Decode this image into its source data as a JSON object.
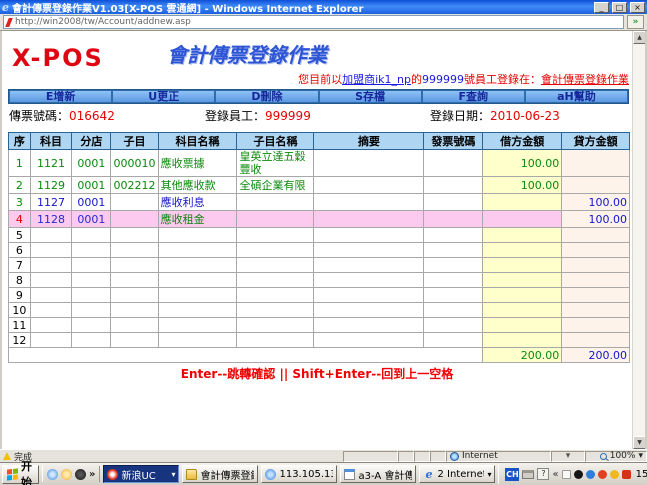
{
  "window": {
    "title": "會計傳票登錄作業V1.03[X-POS 雲通網] - Windows Internet Explorer",
    "minimize_label": "_",
    "maximize_label": "□",
    "close_label": "×"
  },
  "address_bar": {
    "url": "http://win2008/tw/Account/addnew.asp"
  },
  "colors": {
    "titlebar_blue": "#1b5fe0",
    "menu_button_blue": "#6ba3e8",
    "grid_header_blue": "#aed6f2",
    "debit_column_yellow": "#ffffcc",
    "credit_column_pink": "#fdf3ea",
    "selected_row_pink": "#fcc9ef",
    "value_red": "#e80000",
    "entry_green": "#0a8a0a",
    "entry_blue": "#1515c8"
  },
  "page": {
    "logo": "X-POS",
    "title": "會計傳票登錄作業",
    "login_notice": {
      "prefix": "您目前以",
      "merchant": "加盟商ik1_np",
      "mid": "的",
      "employee": "999999",
      "suffix": "號員工登錄在：",
      "location": "會計傳票登錄作業"
    },
    "menu": [
      "E增新",
      "U更正",
      "D刪除",
      "S存檔",
      "F查詢",
      "aH幫助"
    ],
    "fields": {
      "voucher_label": "傳票號碼：",
      "voucher_value": "016642",
      "employee_label": "登錄員工：",
      "employee_value": "999999",
      "date_label": "登錄日期：",
      "date_value": "2010-06-23"
    },
    "table": {
      "headers": [
        "序",
        "科目",
        "分店",
        "子目",
        "科目名稱",
        "子目名稱",
        "摘要",
        "發票號碼",
        "借方金額",
        "貸方金額"
      ],
      "rows": [
        {
          "seq": "1",
          "account": "1121",
          "branch": "0001",
          "sub": "000010",
          "account_name": "應收票據",
          "sub_name": "皇英立達五穀豐收",
          "summary": "",
          "invoice": "",
          "debit": "100.00",
          "credit": "",
          "style": "green"
        },
        {
          "seq": "2",
          "account": "1129",
          "branch": "0001",
          "sub": "002212",
          "account_name": "其他應收款",
          "sub_name": "全碩企業有限",
          "summary": "",
          "invoice": "",
          "debit": "100.00",
          "credit": "",
          "style": "green"
        },
        {
          "seq": "3",
          "account": "1127",
          "branch": "0001",
          "sub": "",
          "account_name": "應收利息",
          "sub_name": "",
          "summary": "",
          "invoice": "",
          "debit": "",
          "credit": "100.00",
          "style": "blue"
        },
        {
          "seq": "4",
          "account": "1128",
          "branch": "0001",
          "sub": "",
          "account_name": "應收租金",
          "sub_name": "",
          "summary": "",
          "invoice": "",
          "debit": "",
          "credit": "100.00",
          "style": "sel"
        },
        {
          "seq": "5",
          "account": "",
          "branch": "",
          "sub": "",
          "account_name": "",
          "sub_name": "",
          "summary": "",
          "invoice": "",
          "debit": "",
          "credit": "",
          "style": "plain"
        },
        {
          "seq": "6",
          "account": "",
          "branch": "",
          "sub": "",
          "account_name": "",
          "sub_name": "",
          "summary": "",
          "invoice": "",
          "debit": "",
          "credit": "",
          "style": "plain"
        },
        {
          "seq": "7",
          "account": "",
          "branch": "",
          "sub": "",
          "account_name": "",
          "sub_name": "",
          "summary": "",
          "invoice": "",
          "debit": "",
          "credit": "",
          "style": "plain"
        },
        {
          "seq": "8",
          "account": "",
          "branch": "",
          "sub": "",
          "account_name": "",
          "sub_name": "",
          "summary": "",
          "invoice": "",
          "debit": "",
          "credit": "",
          "style": "plain"
        },
        {
          "seq": "9",
          "account": "",
          "branch": "",
          "sub": "",
          "account_name": "",
          "sub_name": "",
          "summary": "",
          "invoice": "",
          "debit": "",
          "credit": "",
          "style": "plain"
        },
        {
          "seq": "10",
          "account": "",
          "branch": "",
          "sub": "",
          "account_name": "",
          "sub_name": "",
          "summary": "",
          "invoice": "",
          "debit": "",
          "credit": "",
          "style": "plain"
        },
        {
          "seq": "11",
          "account": "",
          "branch": "",
          "sub": "",
          "account_name": "",
          "sub_name": "",
          "summary": "",
          "invoice": "",
          "debit": "",
          "credit": "",
          "style": "plain"
        },
        {
          "seq": "12",
          "account": "",
          "branch": "",
          "sub": "",
          "account_name": "",
          "sub_name": "",
          "summary": "",
          "invoice": "",
          "debit": "",
          "credit": "",
          "style": "plain"
        }
      ],
      "totals": {
        "debit": "200.00",
        "credit": "200.00"
      }
    },
    "hint": "Enter--跳轉確認 || Shift+Enter--回到上一空格"
  },
  "status_bar": {
    "done": "完成",
    "zone": "Internet",
    "zoom": "100%",
    "zoom_caret": "▾",
    "tools_caret": "▾"
  },
  "taskbar": {
    "start": "开始",
    "quick_more": "»",
    "tasks": [
      {
        "label": "新浪UC",
        "icon": "sina-uc-icon",
        "active": true,
        "has_menu": true
      },
      {
        "label": "會計傳票登錄",
        "icon": "folder-icon",
        "active": false,
        "has_menu": false
      },
      {
        "label": "113.105.131...",
        "icon": "dl-icon",
        "active": false,
        "has_menu": false
      },
      {
        "label": "a3-A 會計傳...",
        "icon": "notepad-icon",
        "active": false,
        "has_menu": false
      },
      {
        "label": "2 Internet...",
        "icon": "ie-icon",
        "active": false,
        "has_menu": true
      }
    ],
    "tray": {
      "language": "CH",
      "collapse": "«",
      "time": "15:28"
    }
  }
}
